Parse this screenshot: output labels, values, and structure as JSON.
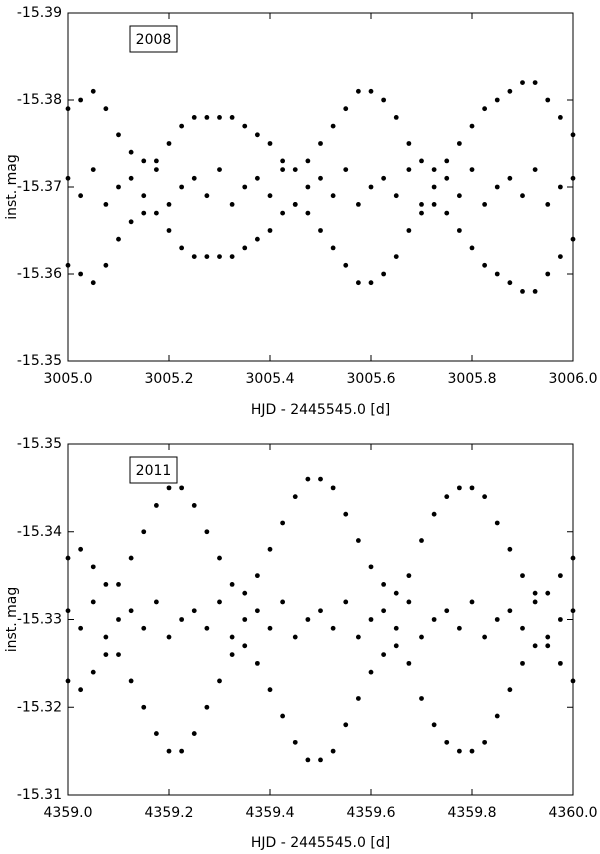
{
  "chart_data": [
    {
      "type": "scatter",
      "annotation": "2008",
      "xlabel": "HJD - 2445545.0 [d]",
      "ylabel": "inst. mag",
      "color": "#000000",
      "xlim": [
        3005.0,
        3006.0
      ],
      "ylim": [
        -15.35,
        -15.39
      ],
      "xticks": [
        {
          "value": 3005.0,
          "label": "3005.0"
        },
        {
          "value": 3005.2,
          "label": "3005.2"
        },
        {
          "value": 3005.4,
          "label": "3005.4"
        },
        {
          "value": 3005.6,
          "label": "3005.6"
        },
        {
          "value": 3005.8,
          "label": "3005.8"
        },
        {
          "value": 3006.0,
          "label": "3006.0"
        }
      ],
      "yticks": [
        -15.39,
        -15.38,
        -15.37,
        -15.36,
        -15.35
      ],
      "x": [
        3005.0,
        3005.025,
        3005.05,
        3005.075,
        3005.1,
        3005.125,
        3005.15,
        3005.175,
        3005.2,
        3005.225,
        3005.25,
        3005.275,
        3005.3,
        3005.325,
        3005.35,
        3005.375,
        3005.4,
        3005.425,
        3005.45,
        3005.475,
        3005.5,
        3005.525,
        3005.55,
        3005.575,
        3005.6,
        3005.625,
        3005.65,
        3005.675,
        3005.7,
        3005.725,
        3005.75,
        3005.775,
        3005.8,
        3005.825,
        3005.85,
        3005.875,
        3005.9,
        3005.925,
        3005.95,
        3005.975,
        3006.0,
        3005.0,
        3005.025,
        3005.05,
        3005.075,
        3005.1,
        3005.125,
        3005.15,
        3005.175,
        3005.2,
        3005.225,
        3005.25,
        3005.275,
        3005.3,
        3005.325,
        3005.35,
        3005.375,
        3005.4,
        3005.425,
        3005.45,
        3005.475,
        3005.5,
        3005.525,
        3005.55,
        3005.575,
        3005.6,
        3005.625,
        3005.65,
        3005.675,
        3005.7,
        3005.725,
        3005.75,
        3005.775,
        3005.8,
        3005.825,
        3005.85,
        3005.875,
        3005.9,
        3005.925,
        3005.95,
        3005.975,
        3006.0,
        3005.0,
        3005.025,
        3005.05,
        3005.075,
        3005.1,
        3005.125,
        3005.15,
        3005.175,
        3005.2,
        3005.225,
        3005.25,
        3005.275,
        3005.3,
        3005.325,
        3005.35,
        3005.375,
        3005.4,
        3005.425,
        3005.45,
        3005.475,
        3005.5,
        3005.525,
        3005.55,
        3005.575,
        3005.6,
        3005.625,
        3005.65,
        3005.675,
        3005.7,
        3005.725,
        3005.75,
        3005.775,
        3005.8,
        3005.825,
        3005.85,
        3005.875,
        3005.9,
        3005.925,
        3005.95,
        3005.975,
        3006.0
      ],
      "values": [
        -15.379,
        -15.38,
        -15.381,
        -15.379,
        -15.376,
        -15.374,
        -15.373,
        -15.373,
        -15.375,
        -15.377,
        -15.378,
        -15.378,
        -15.378,
        -15.378,
        -15.377,
        -15.376,
        -15.375,
        -15.373,
        -15.372,
        -15.373,
        -15.375,
        -15.377,
        -15.379,
        -15.381,
        -15.381,
        -15.38,
        -15.378,
        -15.375,
        -15.373,
        -15.372,
        -15.373,
        -15.375,
        -15.377,
        -15.379,
        -15.38,
        -15.381,
        -15.382,
        -15.382,
        -15.38,
        -15.378,
        -15.376,
        -15.371,
        -15.369,
        -15.372,
        -15.368,
        -15.37,
        -15.371,
        -15.369,
        -15.372,
        -15.368,
        -15.37,
        -15.371,
        -15.369,
        -15.372,
        -15.368,
        -15.37,
        -15.371,
        -15.369,
        -15.372,
        -15.368,
        -15.37,
        -15.371,
        -15.369,
        -15.372,
        -15.368,
        -15.37,
        -15.371,
        -15.369,
        -15.372,
        -15.368,
        -15.37,
        -15.371,
        -15.369,
        -15.372,
        -15.368,
        -15.37,
        -15.371,
        -15.369,
        -15.372,
        -15.368,
        -15.37,
        -15.371,
        -15.361,
        -15.36,
        -15.359,
        -15.361,
        -15.364,
        -15.366,
        -15.367,
        -15.367,
        -15.365,
        -15.363,
        -15.362,
        -15.362,
        -15.362,
        -15.362,
        -15.363,
        -15.364,
        -15.365,
        -15.367,
        -15.368,
        -15.367,
        -15.365,
        -15.363,
        -15.361,
        -15.359,
        -15.359,
        -15.36,
        -15.362,
        -15.365,
        -15.367,
        -15.368,
        -15.367,
        -15.365,
        -15.363,
        -15.361,
        -15.36,
        -15.359,
        -15.358,
        -15.358,
        -15.36,
        -15.362,
        -15.364
      ]
    },
    {
      "type": "scatter",
      "annotation": "2011",
      "xlabel": "HJD - 2445545.0 [d]",
      "ylabel": "inst. mag",
      "color": "#000000",
      "xlim": [
        4359.0,
        4360.0
      ],
      "ylim": [
        -15.31,
        -15.35
      ],
      "xticks": [
        {
          "value": 4359.0,
          "label": "4359.0"
        },
        {
          "value": 4359.2,
          "label": "4359.2"
        },
        {
          "value": 4359.4,
          "label": "4359.4"
        },
        {
          "value": 4359.6,
          "label": "4359.6"
        },
        {
          "value": 4359.8,
          "label": "4359.8"
        },
        {
          "value": 4360.0,
          "label": "4360.0"
        }
      ],
      "yticks": [
        -15.35,
        -15.34,
        -15.33,
        -15.32,
        -15.31
      ],
      "x": [
        4359.0,
        4359.025,
        4359.05,
        4359.075,
        4359.1,
        4359.125,
        4359.15,
        4359.175,
        4359.2,
        4359.225,
        4359.25,
        4359.275,
        4359.3,
        4359.325,
        4359.35,
        4359.375,
        4359.4,
        4359.425,
        4359.45,
        4359.475,
        4359.5,
        4359.525,
        4359.55,
        4359.575,
        4359.6,
        4359.625,
        4359.65,
        4359.675,
        4359.7,
        4359.725,
        4359.75,
        4359.775,
        4359.8,
        4359.825,
        4359.85,
        4359.875,
        4359.9,
        4359.925,
        4359.95,
        4359.975,
        4360.0,
        4359.0,
        4359.025,
        4359.05,
        4359.075,
        4359.1,
        4359.125,
        4359.15,
        4359.175,
        4359.2,
        4359.225,
        4359.25,
        4359.275,
        4359.3,
        4359.325,
        4359.35,
        4359.375,
        4359.4,
        4359.425,
        4359.45,
        4359.475,
        4359.5,
        4359.525,
        4359.55,
        4359.575,
        4359.6,
        4359.625,
        4359.65,
        4359.675,
        4359.7,
        4359.725,
        4359.75,
        4359.775,
        4359.8,
        4359.825,
        4359.85,
        4359.875,
        4359.9,
        4359.925,
        4359.95,
        4359.975,
        4360.0,
        4359.0,
        4359.025,
        4359.05,
        4359.075,
        4359.1,
        4359.125,
        4359.15,
        4359.175,
        4359.2,
        4359.225,
        4359.25,
        4359.275,
        4359.3,
        4359.325,
        4359.35,
        4359.375,
        4359.4,
        4359.425,
        4359.45,
        4359.475,
        4359.5,
        4359.525,
        4359.55,
        4359.575,
        4359.6,
        4359.625,
        4359.65,
        4359.675,
        4359.7,
        4359.725,
        4359.75,
        4359.775,
        4359.8,
        4359.825,
        4359.85,
        4359.875,
        4359.9,
        4359.925,
        4359.95,
        4359.975,
        4360.0
      ],
      "values": [
        -15.337,
        -15.338,
        -15.336,
        -15.334,
        -15.334,
        -15.337,
        -15.34,
        -15.343,
        -15.345,
        -15.345,
        -15.343,
        -15.34,
        -15.337,
        -15.334,
        -15.333,
        -15.335,
        -15.338,
        -15.341,
        -15.344,
        -15.346,
        -15.346,
        -15.345,
        -15.342,
        -15.339,
        -15.336,
        -15.334,
        -15.333,
        -15.335,
        -15.339,
        -15.342,
        -15.344,
        -15.345,
        -15.345,
        -15.344,
        -15.341,
        -15.338,
        -15.335,
        -15.333,
        -15.333,
        -15.335,
        -15.337,
        -15.331,
        -15.329,
        -15.332,
        -15.328,
        -15.33,
        -15.331,
        -15.329,
        -15.332,
        -15.328,
        -15.33,
        -15.331,
        -15.329,
        -15.332,
        -15.328,
        -15.33,
        -15.331,
        -15.329,
        -15.332,
        -15.328,
        -15.33,
        -15.331,
        -15.329,
        -15.332,
        -15.328,
        -15.33,
        -15.331,
        -15.329,
        -15.332,
        -15.328,
        -15.33,
        -15.331,
        -15.329,
        -15.332,
        -15.328,
        -15.33,
        -15.331,
        -15.329,
        -15.332,
        -15.328,
        -15.33,
        -15.331,
        -15.323,
        -15.322,
        -15.324,
        -15.326,
        -15.326,
        -15.323,
        -15.32,
        -15.317,
        -15.315,
        -15.315,
        -15.317,
        -15.32,
        -15.323,
        -15.326,
        -15.327,
        -15.325,
        -15.322,
        -15.319,
        -15.316,
        -15.314,
        -15.314,
        -15.315,
        -15.318,
        -15.321,
        -15.324,
        -15.326,
        -15.327,
        -15.325,
        -15.321,
        -15.318,
        -15.316,
        -15.315,
        -15.315,
        -15.316,
        -15.319,
        -15.322,
        -15.325,
        -15.327,
        -15.327,
        -15.325,
        -15.323
      ]
    }
  ]
}
